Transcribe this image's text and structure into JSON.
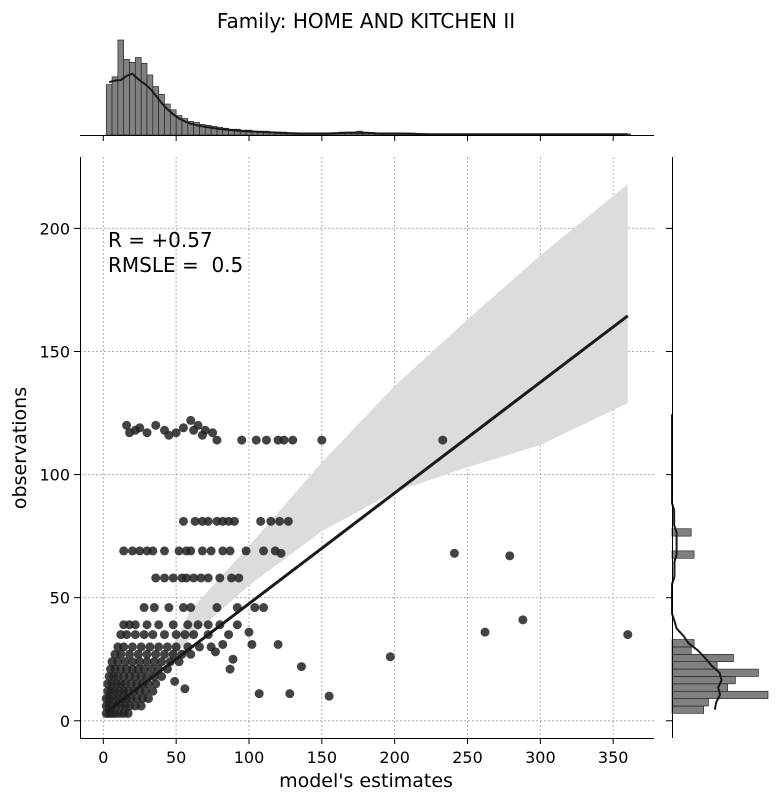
{
  "chart_data": {
    "type": "scatter",
    "title": "Family: HOME AND KITCHEN II",
    "xlabel": "model's estimates",
    "ylabel": "observations",
    "xlim": [
      -16,
      378
    ],
    "ylim": [
      -7,
      229
    ],
    "xticks": [
      0,
      50,
      100,
      150,
      200,
      250,
      300,
      350
    ],
    "yticks": [
      0,
      50,
      100,
      150,
      200
    ],
    "grid": true,
    "annotations": [
      "R = +0.57",
      "RMSLE =  0.5"
    ],
    "regression": {
      "x": [
        2,
        360
      ],
      "y": [
        3.5,
        164.5
      ],
      "ci_lower": [
        [
          40,
          20
        ],
        [
          60,
          34
        ],
        [
          100,
          55
        ],
        [
          150,
          77
        ],
        [
          200,
          93
        ],
        [
          250,
          103
        ],
        [
          300,
          112
        ],
        [
          360,
          129
        ]
      ],
      "ci_upper": [
        [
          40,
          21.5
        ],
        [
          60,
          45
        ],
        [
          100,
          71
        ],
        [
          150,
          105
        ],
        [
          200,
          136
        ],
        [
          250,
          163
        ],
        [
          300,
          189
        ],
        [
          360,
          218
        ]
      ]
    },
    "points": [
      [
        233,
        114
      ],
      [
        241,
        68
      ],
      [
        279,
        67
      ],
      [
        262,
        36
      ],
      [
        288,
        41
      ],
      [
        360,
        35
      ],
      [
        197,
        26
      ],
      [
        155,
        10
      ],
      [
        128,
        11
      ],
      [
        107,
        11
      ],
      [
        136,
        22
      ],
      [
        120,
        31
      ],
      [
        102,
        31
      ],
      [
        100,
        36
      ],
      [
        89,
        25
      ],
      [
        77,
        28
      ],
      [
        87,
        21
      ],
      [
        82,
        31
      ],
      [
        56,
        13
      ],
      [
        49,
        16
      ],
      [
        16,
        120
      ],
      [
        18,
        117
      ],
      [
        22,
        118
      ],
      [
        25,
        119
      ],
      [
        30,
        117
      ],
      [
        36,
        120
      ],
      [
        42,
        118
      ],
      [
        45,
        116
      ],
      [
        50,
        117
      ],
      [
        55,
        119
      ],
      [
        60,
        122
      ],
      [
        62,
        118
      ],
      [
        65,
        120
      ],
      [
        68,
        116
      ],
      [
        70,
        118
      ],
      [
        75,
        117
      ],
      [
        78,
        114
      ],
      [
        95,
        114
      ],
      [
        105,
        114
      ],
      [
        112,
        114
      ],
      [
        120,
        114
      ],
      [
        124,
        114
      ],
      [
        130,
        114
      ],
      [
        150,
        114
      ],
      [
        55,
        81
      ],
      [
        63,
        81
      ],
      [
        68,
        81
      ],
      [
        72,
        81
      ],
      [
        78,
        81
      ],
      [
        82,
        81
      ],
      [
        86,
        81
      ],
      [
        90,
        81
      ],
      [
        108,
        81
      ],
      [
        115,
        81
      ],
      [
        121,
        81
      ],
      [
        127,
        81
      ],
      [
        14,
        69
      ],
      [
        20,
        69
      ],
      [
        25,
        69
      ],
      [
        30,
        69
      ],
      [
        34,
        69
      ],
      [
        42,
        69
      ],
      [
        52,
        69
      ],
      [
        57,
        69
      ],
      [
        60,
        69
      ],
      [
        68,
        69
      ],
      [
        74,
        69
      ],
      [
        82,
        69
      ],
      [
        87,
        69
      ],
      [
        98,
        69
      ],
      [
        110,
        69
      ],
      [
        118,
        69
      ],
      [
        122,
        68
      ],
      [
        36,
        58
      ],
      [
        42,
        58
      ],
      [
        48,
        58
      ],
      [
        54,
        58
      ],
      [
        57,
        58
      ],
      [
        62,
        58
      ],
      [
        67,
        58
      ],
      [
        72,
        58
      ],
      [
        80,
        58
      ],
      [
        88,
        58
      ],
      [
        93,
        58
      ],
      [
        28,
        46
      ],
      [
        35,
        46
      ],
      [
        45,
        46
      ],
      [
        55,
        46
      ],
      [
        60,
        46
      ],
      [
        78,
        46
      ],
      [
        92,
        46
      ],
      [
        104,
        46
      ],
      [
        110,
        46
      ],
      [
        14,
        39
      ],
      [
        18,
        39
      ],
      [
        22,
        39
      ],
      [
        30,
        39
      ],
      [
        38,
        39
      ],
      [
        48,
        39
      ],
      [
        58,
        39
      ],
      [
        65,
        39
      ],
      [
        72,
        39
      ],
      [
        80,
        39
      ],
      [
        92,
        39
      ],
      [
        12,
        35
      ],
      [
        16,
        35
      ],
      [
        22,
        35
      ],
      [
        28,
        35
      ],
      [
        34,
        35
      ],
      [
        42,
        35
      ],
      [
        50,
        35
      ],
      [
        56,
        35
      ],
      [
        62,
        35
      ],
      [
        72,
        35
      ],
      [
        86,
        35
      ],
      [
        10,
        30
      ],
      [
        14,
        30
      ],
      [
        20,
        30
      ],
      [
        26,
        30
      ],
      [
        32,
        30
      ],
      [
        38,
        30
      ],
      [
        44,
        30
      ],
      [
        50,
        30
      ],
      [
        58,
        30
      ],
      [
        66,
        30
      ],
      [
        74,
        30
      ],
      [
        8,
        27
      ],
      [
        12,
        27
      ],
      [
        18,
        27
      ],
      [
        24,
        27
      ],
      [
        30,
        27
      ],
      [
        36,
        27
      ],
      [
        42,
        27
      ],
      [
        48,
        27
      ],
      [
        54,
        27
      ],
      [
        60,
        27
      ],
      [
        6,
        24
      ],
      [
        10,
        24
      ],
      [
        15,
        24
      ],
      [
        20,
        24
      ],
      [
        25,
        24
      ],
      [
        30,
        24
      ],
      [
        35,
        24
      ],
      [
        40,
        24
      ],
      [
        46,
        24
      ],
      [
        52,
        24
      ],
      [
        5,
        21
      ],
      [
        8,
        21
      ],
      [
        12,
        21
      ],
      [
        16,
        21
      ],
      [
        20,
        21
      ],
      [
        24,
        21
      ],
      [
        28,
        21
      ],
      [
        33,
        21
      ],
      [
        38,
        21
      ],
      [
        44,
        21
      ],
      [
        4,
        18
      ],
      [
        7,
        18
      ],
      [
        10,
        18
      ],
      [
        14,
        18
      ],
      [
        18,
        18
      ],
      [
        22,
        18
      ],
      [
        26,
        18
      ],
      [
        30,
        18
      ],
      [
        35,
        18
      ],
      [
        40,
        18
      ],
      [
        3,
        15
      ],
      [
        6,
        15
      ],
      [
        9,
        15
      ],
      [
        12,
        15
      ],
      [
        15,
        15
      ],
      [
        19,
        15
      ],
      [
        23,
        15
      ],
      [
        27,
        15
      ],
      [
        31,
        15
      ],
      [
        36,
        15
      ],
      [
        3,
        12
      ],
      [
        5,
        12
      ],
      [
        8,
        12
      ],
      [
        11,
        12
      ],
      [
        14,
        12
      ],
      [
        17,
        12
      ],
      [
        21,
        12
      ],
      [
        25,
        12
      ],
      [
        29,
        12
      ],
      [
        34,
        12
      ],
      [
        2,
        9
      ],
      [
        4,
        9
      ],
      [
        7,
        9
      ],
      [
        10,
        9
      ],
      [
        13,
        9
      ],
      [
        16,
        9
      ],
      [
        19,
        9
      ],
      [
        23,
        9
      ],
      [
        27,
        9
      ],
      [
        31,
        9
      ],
      [
        2,
        6
      ],
      [
        4,
        6
      ],
      [
        6,
        6
      ],
      [
        9,
        6
      ],
      [
        12,
        6
      ],
      [
        15,
        6
      ],
      [
        18,
        6
      ],
      [
        22,
        6
      ],
      [
        26,
        6
      ],
      [
        2,
        3
      ],
      [
        4,
        3
      ],
      [
        6,
        3
      ],
      [
        8,
        3
      ],
      [
        11,
        3
      ],
      [
        14,
        3
      ],
      [
        17,
        3
      ]
    ],
    "top_hist": {
      "bin_width": 4,
      "start": 2,
      "counts": [
        52,
        60,
        98,
        78,
        75,
        80,
        74,
        62,
        50,
        42,
        32,
        26,
        20,
        17,
        14,
        13,
        11,
        10,
        9,
        8,
        7,
        6,
        6,
        5,
        5,
        4,
        4,
        4,
        3,
        3,
        3,
        2,
        2,
        2,
        2,
        2,
        2,
        2,
        2,
        2,
        3,
        3,
        3,
        4,
        3,
        2,
        2,
        2,
        2,
        2,
        2,
        2,
        2,
        1,
        1,
        1,
        1,
        1,
        1,
        1,
        1,
        1,
        1,
        1,
        1,
        1,
        1,
        1,
        1,
        1,
        1,
        1,
        1,
        1,
        1,
        1,
        1,
        1,
        1,
        1,
        1,
        1,
        1,
        1,
        1,
        1,
        1,
        1,
        1,
        1
      ]
    },
    "right_hist": {
      "bin_width": 3,
      "start": 3,
      "counts": [
        33,
        38,
        100,
        58,
        66,
        90,
        47,
        64,
        20,
        23,
        0,
        0,
        0,
        0,
        0,
        0,
        0,
        0,
        0,
        0,
        0,
        23,
        0,
        0,
        20,
        0,
        0,
        0,
        0,
        0,
        0,
        0,
        0,
        0,
        0,
        0,
        0,
        0,
        0,
        0,
        0,
        0,
        0,
        0,
        0,
        0,
        0,
        0,
        0,
        0,
        0,
        0,
        0,
        0,
        0,
        0,
        0,
        0,
        0,
        0,
        0,
        0,
        0,
        0,
        0,
        0,
        0,
        0,
        0,
        0,
        0,
        0,
        0,
        0,
        0,
        0,
        0,
        0,
        0,
        0,
        0,
        0
      ]
    },
    "colors": {
      "points": "#222222",
      "line": "#1a1a1a",
      "ci_band": "#dcdcdc",
      "hist_fill": "#808080",
      "hist_edge": "#1a1a1a"
    }
  }
}
